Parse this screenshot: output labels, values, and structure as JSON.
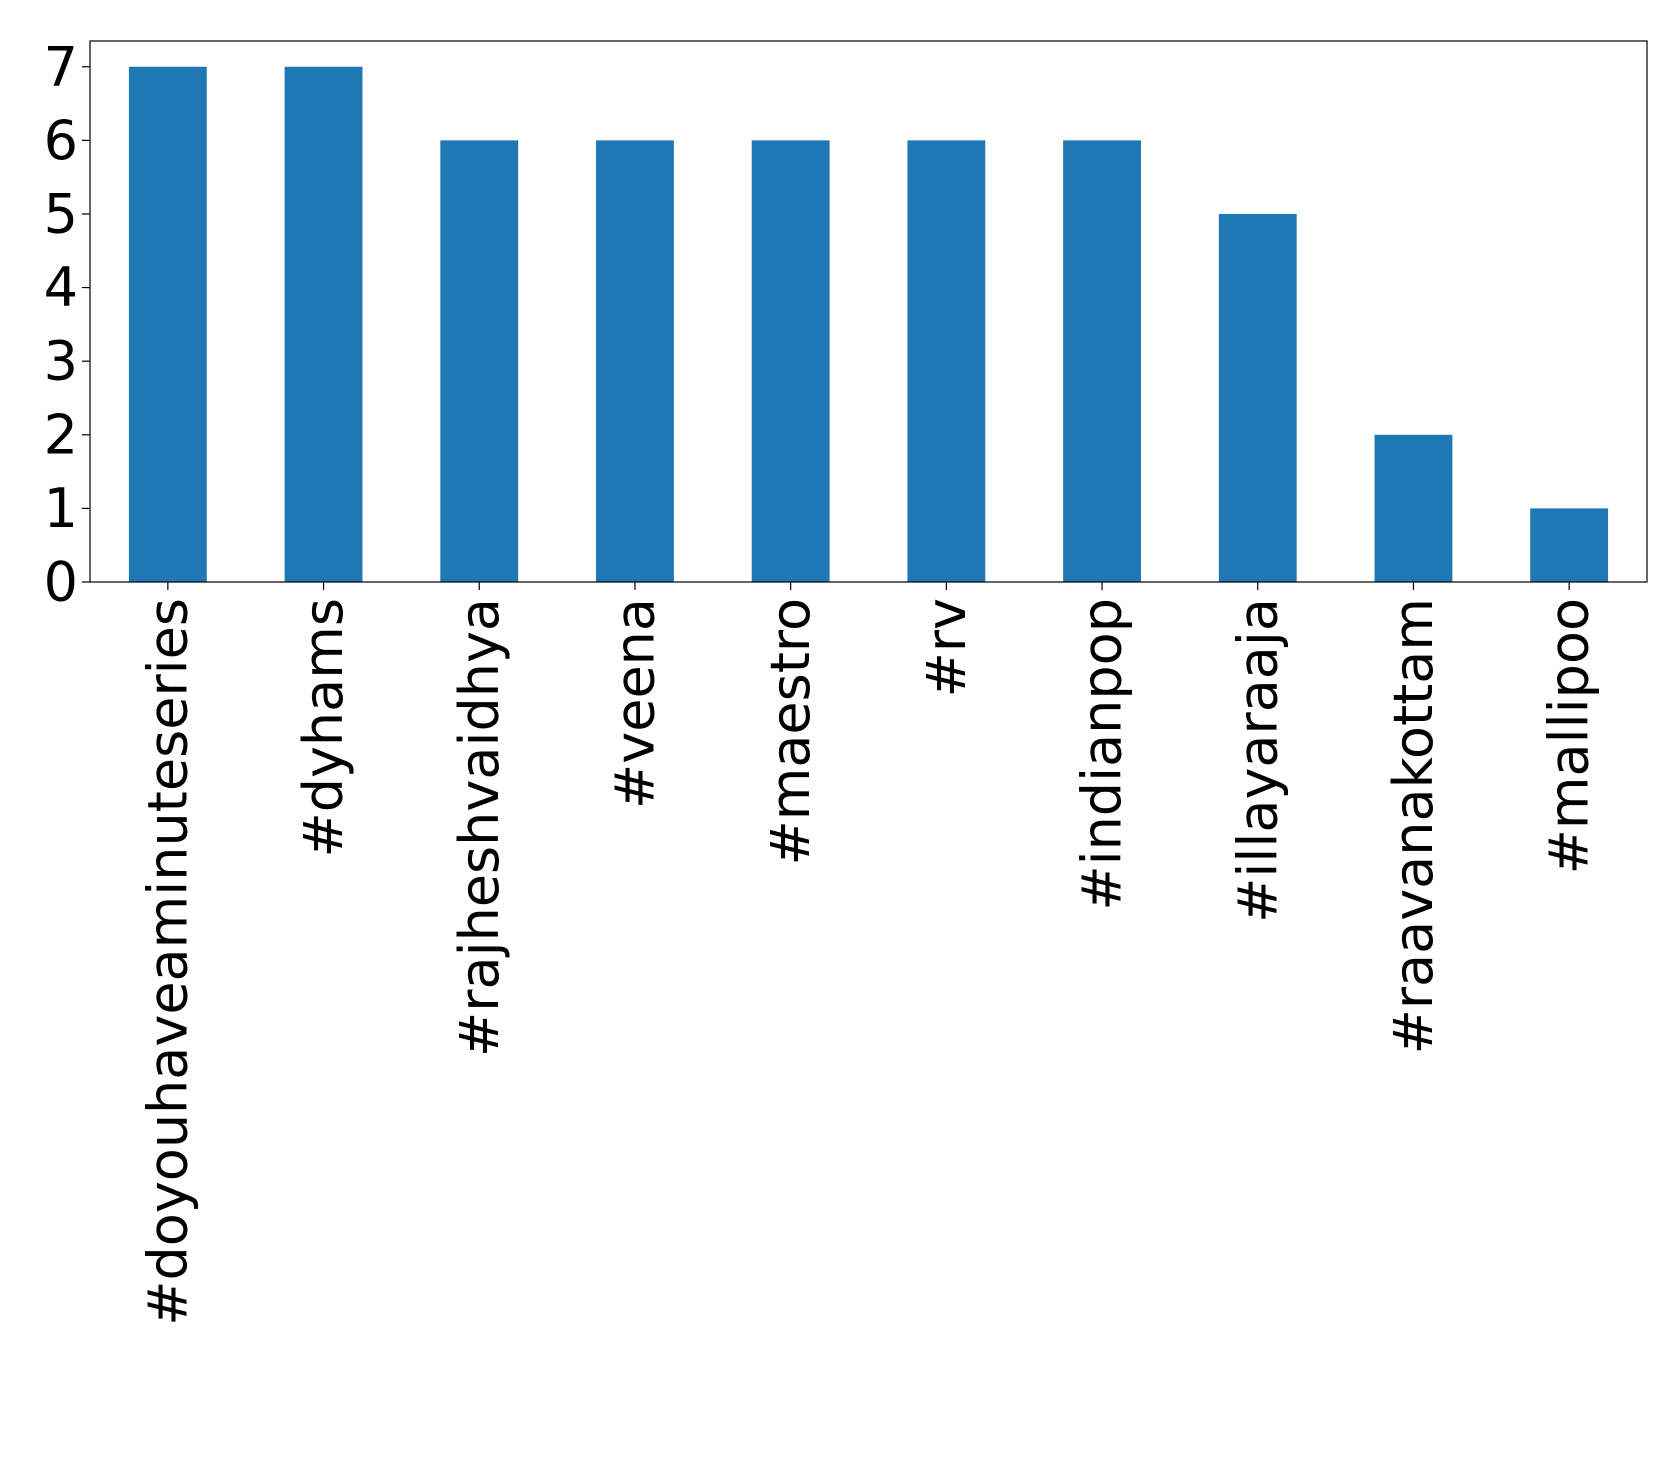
{
  "chart_data": {
    "type": "bar",
    "categories": [
      "#doyouhaveaminuteseries",
      "#dyhams",
      "#rajheshvaidhya",
      "#veena",
      "#maestro",
      "#rv",
      "#indianpop",
      "#illayaraaja",
      "#raavanakottam",
      "#mallipoo"
    ],
    "values": [
      7,
      7,
      6,
      6,
      6,
      6,
      6,
      5,
      2,
      1
    ],
    "color": "#1f77b4",
    "ylim": [
      0,
      7.35
    ],
    "yticks": [
      0,
      1,
      2,
      3,
      4,
      5,
      6,
      7
    ],
    "grid": false
  }
}
